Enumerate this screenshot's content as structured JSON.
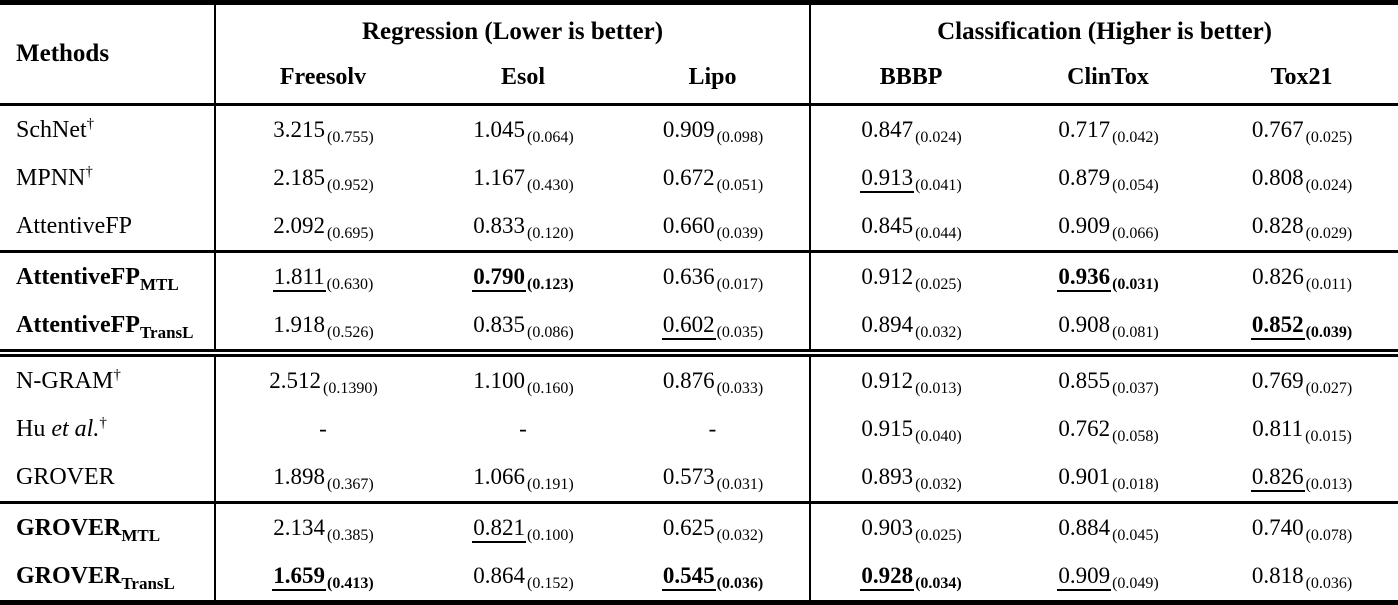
{
  "table": {
    "header": {
      "methods": "Methods",
      "groups": [
        {
          "label": "Regression (Lower is better)",
          "cols": [
            "Freesolv",
            "Esol",
            "Lipo"
          ]
        },
        {
          "label": "Classification (Higher is better)",
          "cols": [
            "BBBP",
            "ClinTox",
            "Tox21"
          ]
        }
      ]
    },
    "groups": [
      {
        "rows": [
          {
            "method": {
              "text": "SchNet",
              "italic": "",
              "subscript": "",
              "dagger": "†",
              "bold": false
            },
            "cells": [
              {
                "v": "3.215",
                "s": "(0.755)",
                "b": false,
                "u": false
              },
              {
                "v": "1.045",
                "s": "(0.064)",
                "b": false,
                "u": false
              },
              {
                "v": "0.909",
                "s": "(0.098)",
                "b": false,
                "u": false
              },
              {
                "v": "0.847",
                "s": "(0.024)",
                "b": false,
                "u": false
              },
              {
                "v": "0.717",
                "s": "(0.042)",
                "b": false,
                "u": false
              },
              {
                "v": "0.767",
                "s": "(0.025)",
                "b": false,
                "u": false
              }
            ]
          },
          {
            "method": {
              "text": "MPNN",
              "italic": "",
              "subscript": "",
              "dagger": "†",
              "bold": false
            },
            "cells": [
              {
                "v": "2.185",
                "s": "(0.952)",
                "b": false,
                "u": false
              },
              {
                "v": "1.167",
                "s": "(0.430)",
                "b": false,
                "u": false
              },
              {
                "v": "0.672",
                "s": "(0.051)",
                "b": false,
                "u": false
              },
              {
                "v": "0.913",
                "s": "(0.041)",
                "b": false,
                "u": true
              },
              {
                "v": "0.879",
                "s": "(0.054)",
                "b": false,
                "u": false
              },
              {
                "v": "0.808",
                "s": "(0.024)",
                "b": false,
                "u": false
              }
            ]
          },
          {
            "method": {
              "text": "AttentiveFP",
              "italic": "",
              "subscript": "",
              "dagger": "",
              "bold": false
            },
            "cells": [
              {
                "v": "2.092",
                "s": "(0.695)",
                "b": false,
                "u": false
              },
              {
                "v": "0.833",
                "s": "(0.120)",
                "b": false,
                "u": false
              },
              {
                "v": "0.660",
                "s": "(0.039)",
                "b": false,
                "u": false
              },
              {
                "v": "0.845",
                "s": "(0.044)",
                "b": false,
                "u": false
              },
              {
                "v": "0.909",
                "s": "(0.066)",
                "b": false,
                "u": false
              },
              {
                "v": "0.828",
                "s": "(0.029)",
                "b": false,
                "u": false
              }
            ]
          }
        ]
      },
      {
        "rows": [
          {
            "method": {
              "text": "AttentiveFP",
              "italic": "",
              "subscript": "MTL",
              "dagger": "",
              "bold": true
            },
            "cells": [
              {
                "v": "1.811",
                "s": "(0.630)",
                "b": false,
                "u": true
              },
              {
                "v": "0.790",
                "s": "(0.123)",
                "b": true,
                "u": true
              },
              {
                "v": "0.636",
                "s": "(0.017)",
                "b": false,
                "u": false
              },
              {
                "v": "0.912",
                "s": "(0.025)",
                "b": false,
                "u": false
              },
              {
                "v": "0.936",
                "s": "(0.031)",
                "b": true,
                "u": true
              },
              {
                "v": "0.826",
                "s": "(0.011)",
                "b": false,
                "u": false
              }
            ]
          },
          {
            "method": {
              "text": "AttentiveFP",
              "italic": "",
              "subscript": "TransL",
              "dagger": "",
              "bold": true
            },
            "cells": [
              {
                "v": "1.918",
                "s": "(0.526)",
                "b": false,
                "u": false
              },
              {
                "v": "0.835",
                "s": "(0.086)",
                "b": false,
                "u": false
              },
              {
                "v": "0.602",
                "s": "(0.035)",
                "b": false,
                "u": true
              },
              {
                "v": "0.894",
                "s": "(0.032)",
                "b": false,
                "u": false
              },
              {
                "v": "0.908",
                "s": "(0.081)",
                "b": false,
                "u": false
              },
              {
                "v": "0.852",
                "s": "(0.039)",
                "b": true,
                "u": true
              }
            ]
          }
        ]
      },
      {
        "rows": [
          {
            "method": {
              "text": "N-GRAM",
              "italic": "",
              "subscript": "",
              "dagger": "†",
              "bold": false
            },
            "cells": [
              {
                "v": "2.512",
                "s": "(0.1390)",
                "b": false,
                "u": false
              },
              {
                "v": "1.100",
                "s": "(0.160)",
                "b": false,
                "u": false
              },
              {
                "v": "0.876",
                "s": "(0.033)",
                "b": false,
                "u": false
              },
              {
                "v": "0.912",
                "s": "(0.013)",
                "b": false,
                "u": false
              },
              {
                "v": "0.855",
                "s": "(0.037)",
                "b": false,
                "u": false
              },
              {
                "v": "0.769",
                "s": "(0.027)",
                "b": false,
                "u": false
              }
            ]
          },
          {
            "method": {
              "text": "Hu ",
              "italic": "et al.",
              "subscript": "",
              "dagger": "†",
              "bold": false
            },
            "cells": [
              {
                "v": "-",
                "s": "",
                "b": false,
                "u": false
              },
              {
                "v": "-",
                "s": "",
                "b": false,
                "u": false
              },
              {
                "v": "-",
                "s": "",
                "b": false,
                "u": false
              },
              {
                "v": "0.915",
                "s": "(0.040)",
                "b": false,
                "u": false
              },
              {
                "v": "0.762",
                "s": "(0.058)",
                "b": false,
                "u": false
              },
              {
                "v": "0.811",
                "s": "(0.015)",
                "b": false,
                "u": false
              }
            ]
          },
          {
            "method": {
              "text": "GROVER",
              "italic": "",
              "subscript": "",
              "dagger": "",
              "bold": false
            },
            "cells": [
              {
                "v": "1.898",
                "s": "(0.367)",
                "b": false,
                "u": false
              },
              {
                "v": "1.066",
                "s": "(0.191)",
                "b": false,
                "u": false
              },
              {
                "v": "0.573",
                "s": "(0.031)",
                "b": false,
                "u": false
              },
              {
                "v": "0.893",
                "s": "(0.032)",
                "b": false,
                "u": false
              },
              {
                "v": "0.901",
                "s": "(0.018)",
                "b": false,
                "u": false
              },
              {
                "v": "0.826",
                "s": "(0.013)",
                "b": false,
                "u": true
              }
            ]
          }
        ]
      },
      {
        "rows": [
          {
            "method": {
              "text": "GROVER",
              "italic": "",
              "subscript": "MTL",
              "dagger": "",
              "bold": true
            },
            "cells": [
              {
                "v": "2.134",
                "s": "(0.385)",
                "b": false,
                "u": false
              },
              {
                "v": "0.821",
                "s": "(0.100)",
                "b": false,
                "u": true
              },
              {
                "v": "0.625",
                "s": "(0.032)",
                "b": false,
                "u": false
              },
              {
                "v": "0.903",
                "s": "(0.025)",
                "b": false,
                "u": false
              },
              {
                "v": "0.884",
                "s": "(0.045)",
                "b": false,
                "u": false
              },
              {
                "v": "0.740",
                "s": "(0.078)",
                "b": false,
                "u": false
              }
            ]
          },
          {
            "method": {
              "text": "GROVER",
              "italic": "",
              "subscript": "TransL",
              "dagger": "",
              "bold": true
            },
            "cells": [
              {
                "v": "1.659",
                "s": "(0.413)",
                "b": true,
                "u": true
              },
              {
                "v": "0.864",
                "s": "(0.152)",
                "b": false,
                "u": false
              },
              {
                "v": "0.545",
                "s": "(0.036)",
                "b": true,
                "u": true
              },
              {
                "v": "0.928",
                "s": "(0.034)",
                "b": true,
                "u": true
              },
              {
                "v": "0.909",
                "s": "(0.049)",
                "b": false,
                "u": true
              },
              {
                "v": "0.818",
                "s": "(0.036)",
                "b": false,
                "u": false
              }
            ]
          }
        ]
      }
    ]
  }
}
